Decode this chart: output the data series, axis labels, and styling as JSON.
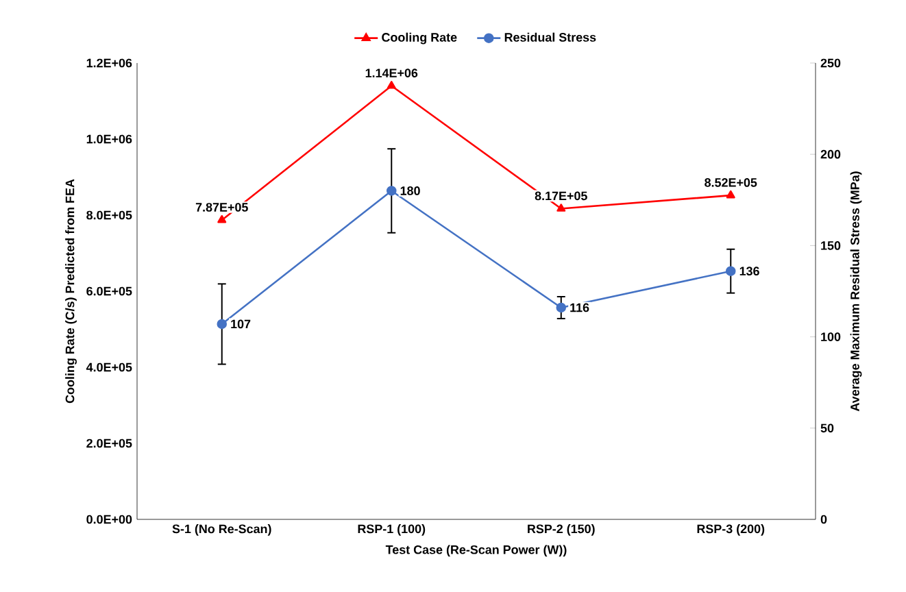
{
  "chart_data": {
    "type": "line",
    "xlabel": "Test Case (Re-Scan Power (W))",
    "ylabel": "Cooling Rate (C/s) Predicted from FEA",
    "y2label": "Average Maximum Residual Stress (MPa)",
    "categories": [
      "S-1 (No Re-Scan)",
      "RSP-1 (100)",
      "RSP-2 (150)",
      "RSP-3 (200)"
    ],
    "series": [
      {
        "name": "Cooling Rate",
        "color": "#ff0000",
        "marker": "triangle",
        "values": [
          787000,
          1140000,
          817000,
          852000
        ],
        "value_labels": [
          "7.87E+05",
          "1.14E+06",
          "8.17E+05",
          "8.52E+05"
        ]
      },
      {
        "name": "Residual Stress",
        "color": "#4472c4",
        "marker": "circle",
        "axis": "y2",
        "values": [
          107,
          180,
          116,
          136
        ],
        "errors": [
          22,
          23,
          6,
          12
        ],
        "value_labels": [
          "107",
          "180",
          "116",
          "136"
        ]
      }
    ],
    "ylim": [
      0,
      1200000
    ],
    "yticks": [
      {
        "value": 0,
        "label": "0.0E+00"
      },
      {
        "value": 200000,
        "label": "2.0E+05"
      },
      {
        "value": 400000,
        "label": "4.0E+05"
      },
      {
        "value": 600000,
        "label": "6.0E+05"
      },
      {
        "value": 800000,
        "label": "8.0E+05"
      },
      {
        "value": 1000000,
        "label": "1.0E+06"
      },
      {
        "value": 1200000,
        "label": "1.2E+06"
      }
    ],
    "y2lim": [
      0,
      250
    ],
    "y2ticks": [
      0,
      50,
      100,
      150,
      200,
      250
    ],
    "grid": false,
    "legend": "top",
    "line_style": "solid"
  }
}
